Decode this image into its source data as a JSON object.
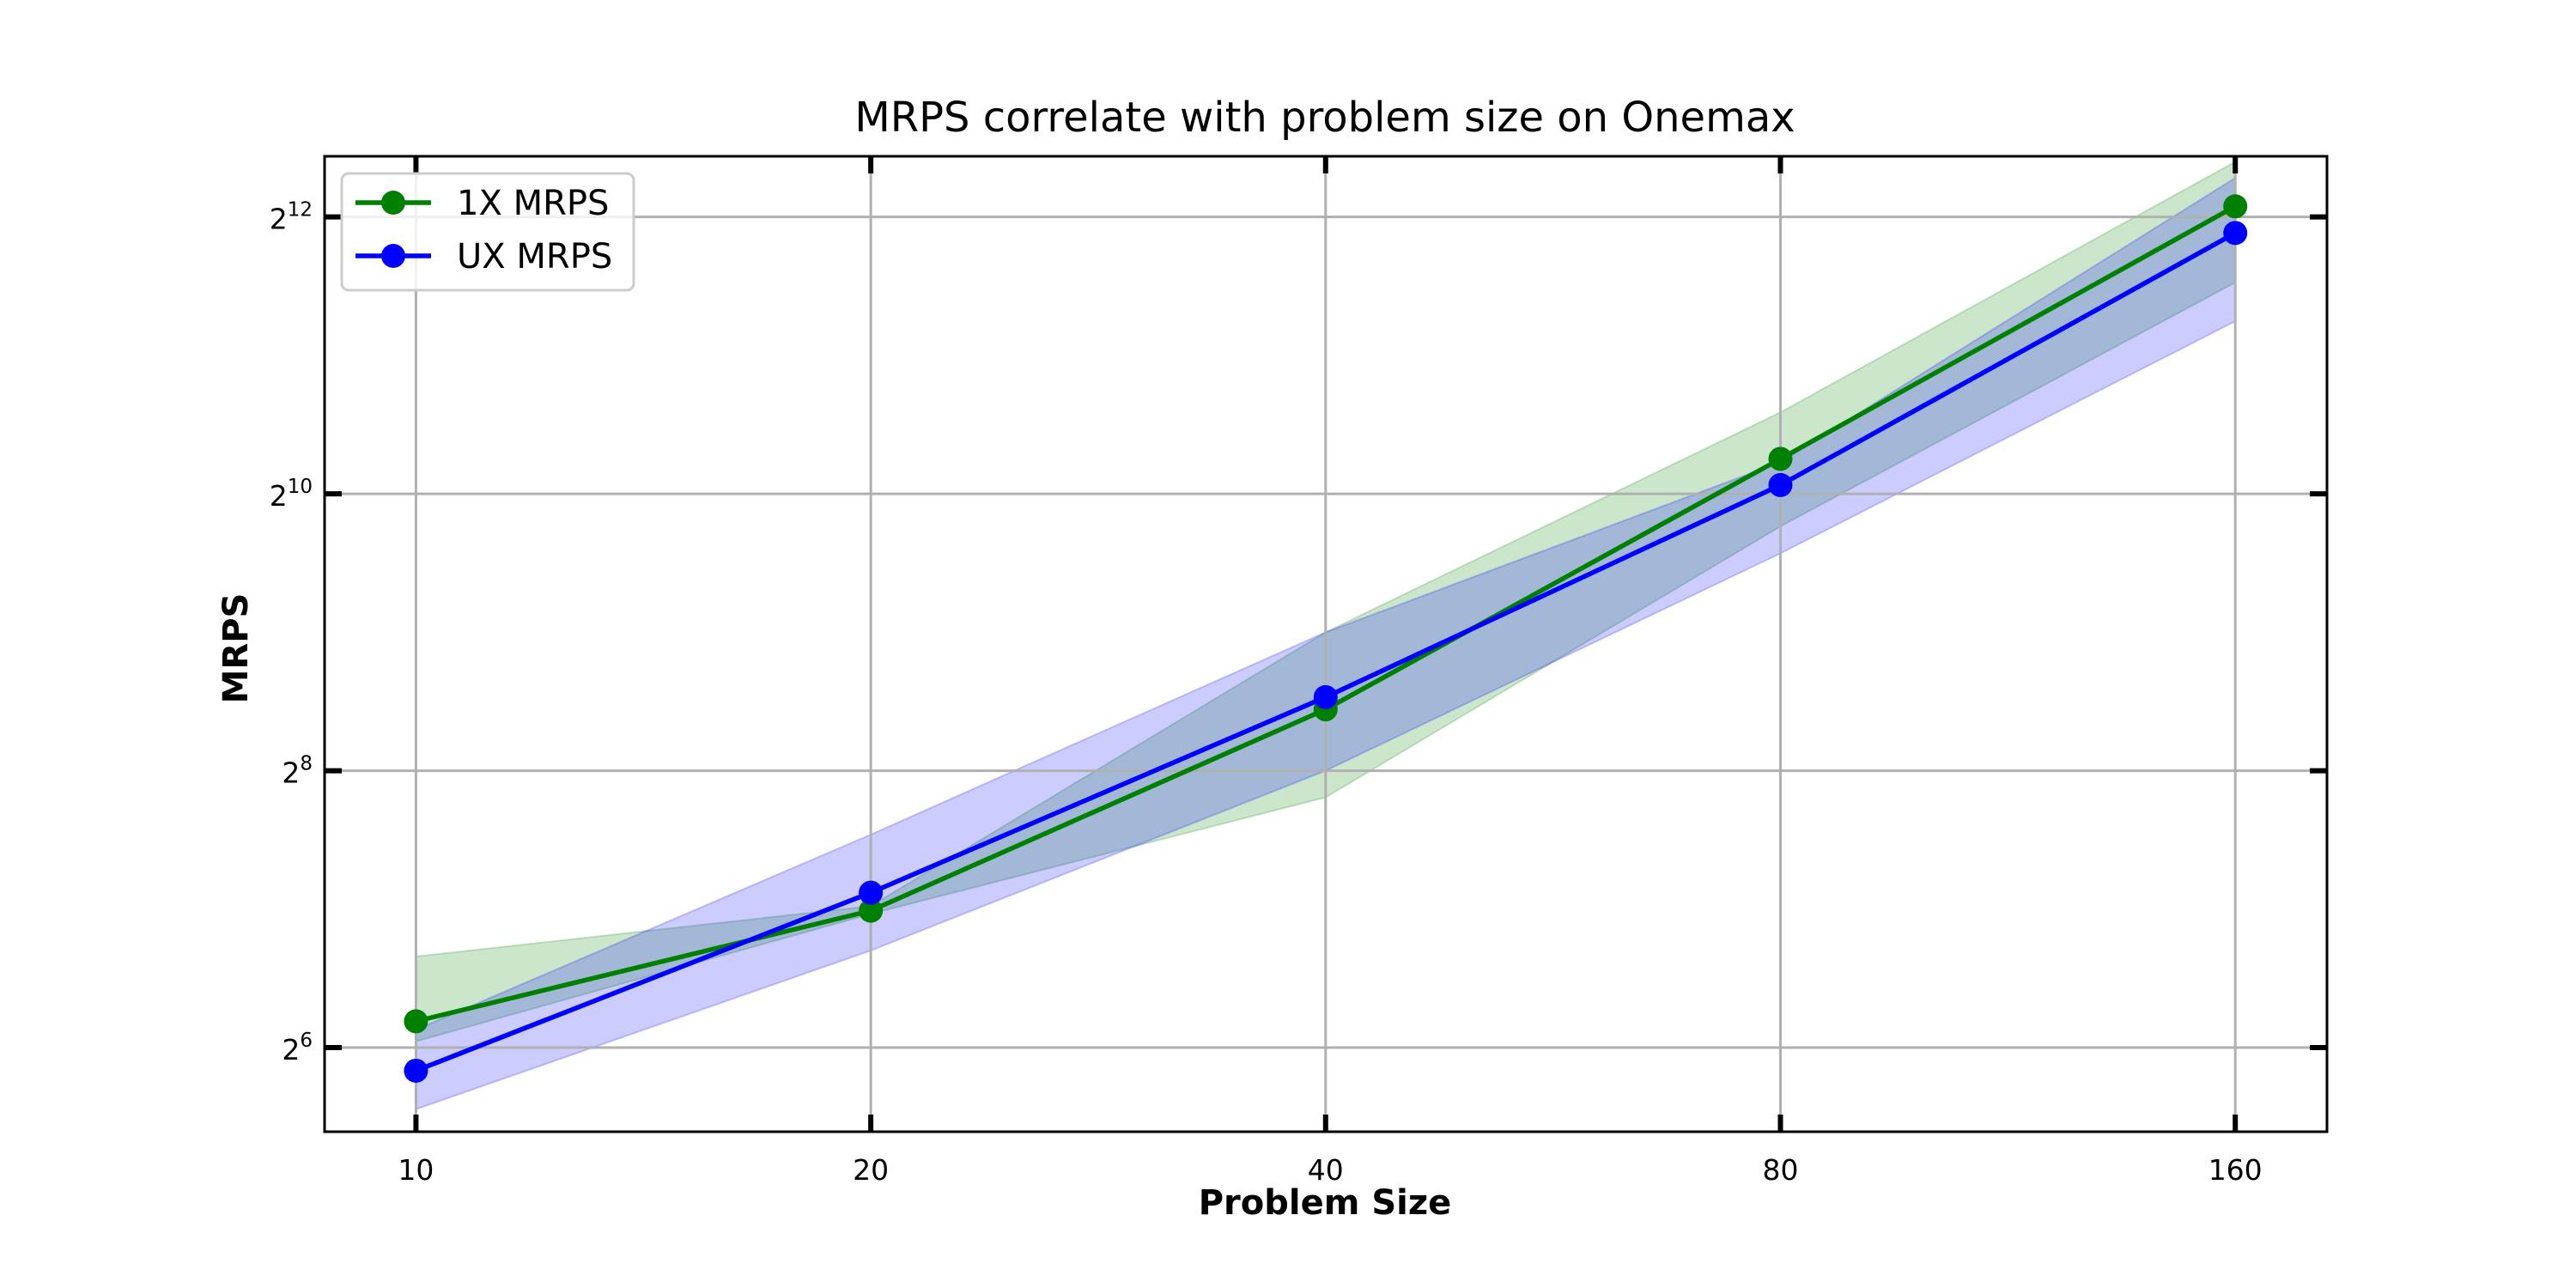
{
  "chart_data": {
    "type": "line",
    "title": "MRPS correlate with problem size on Onemax",
    "xlabel": "Problem Size",
    "ylabel": "MRPS",
    "x_scale": "log2",
    "y_scale": "log2",
    "x": [
      10,
      20,
      40,
      80,
      160
    ],
    "xticks": [
      "10",
      "20",
      "40",
      "80",
      "160"
    ],
    "yticks": [
      {
        "base": "2",
        "exp": "6",
        "value": 64
      },
      {
        "base": "2",
        "exp": "8",
        "value": 256
      },
      {
        "base": "2",
        "exp": "10",
        "value": 1024
      },
      {
        "base": "2",
        "exp": "12",
        "value": 4096
      }
    ],
    "xlim": [
      8.7,
      184
    ],
    "ylim": [
      42,
      5550
    ],
    "grid": true,
    "legend_position": "top-left",
    "series": [
      {
        "name": "1X MRPS",
        "color": "#008000",
        "band_color": "#008000",
        "values": [
          73,
          127,
          348,
          1220,
          4320
        ],
        "lower": [
          66,
          125,
          224,
          870,
          2950
        ],
        "upper": [
          101,
          130,
          512,
          1540,
          5400
        ]
      },
      {
        "name": "UX MRPS",
        "color": "#0000ff",
        "band_color": "#0000ff",
        "values": [
          57,
          139,
          370,
          1070,
          3780
        ],
        "lower": [
          47,
          104,
          256,
          760,
          2430
        ],
        "upper": [
          70,
          186,
          512,
          1200,
          4980
        ]
      }
    ]
  }
}
